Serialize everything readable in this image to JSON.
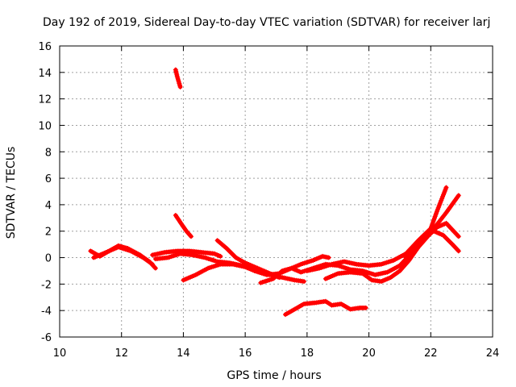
{
  "chart_data": {
    "type": "scatter",
    "title": "Day 192 of 2019, Sidereal Day-to-day VTEC variation (SDTVAR) for receiver larj",
    "xlabel": "GPS time / hours",
    "ylabel": "SDTVAR / TECUs",
    "xlim": [
      10,
      24
    ],
    "ylim": [
      -6,
      16
    ],
    "xticks": [
      10,
      12,
      14,
      16,
      18,
      20,
      22,
      24
    ],
    "yticks": [
      -6,
      -4,
      -2,
      0,
      2,
      4,
      6,
      8,
      10,
      12,
      14,
      16
    ],
    "grid": true,
    "marker": "plus",
    "color": "#ff0000",
    "series": [
      {
        "name": "track-1",
        "points": [
          [
            11.0,
            0.5
          ],
          [
            11.3,
            0.1
          ],
          [
            11.6,
            0.5
          ],
          [
            11.9,
            0.9
          ],
          [
            12.2,
            0.7
          ],
          [
            12.6,
            0.2
          ],
          [
            12.9,
            -0.3
          ],
          [
            13.1,
            -0.8
          ]
        ]
      },
      {
        "name": "track-2",
        "points": [
          [
            11.1,
            0.0
          ],
          [
            11.5,
            0.4
          ],
          [
            11.9,
            0.8
          ],
          [
            12.3,
            0.5
          ],
          [
            12.7,
            0.0
          ],
          [
            13.0,
            -0.5
          ]
        ]
      },
      {
        "name": "track-3",
        "points": [
          [
            13.0,
            0.2
          ],
          [
            13.4,
            0.4
          ],
          [
            13.8,
            0.5
          ],
          [
            14.2,
            0.5
          ],
          [
            14.6,
            0.4
          ],
          [
            15.0,
            0.3
          ],
          [
            15.2,
            0.1
          ]
        ]
      },
      {
        "name": "track-4",
        "points": [
          [
            13.1,
            -0.1
          ],
          [
            13.5,
            0.0
          ],
          [
            13.9,
            0.3
          ],
          [
            14.3,
            0.2
          ],
          [
            14.7,
            0.0
          ],
          [
            15.1,
            -0.3
          ],
          [
            15.5,
            -0.4
          ],
          [
            15.9,
            -0.6
          ],
          [
            16.3,
            -1.0
          ],
          [
            16.7,
            -1.3
          ],
          [
            17.1,
            -1.2
          ],
          [
            17.4,
            -0.9
          ],
          [
            17.8,
            -0.5
          ],
          [
            18.2,
            -0.2
          ],
          [
            18.5,
            0.1
          ],
          [
            18.7,
            0.0
          ]
        ]
      },
      {
        "name": "track-5",
        "points": [
          [
            14.0,
            -1.7
          ],
          [
            14.4,
            -1.3
          ],
          [
            14.8,
            -0.8
          ],
          [
            15.2,
            -0.5
          ],
          [
            15.6,
            -0.5
          ],
          [
            16.0,
            -0.7
          ],
          [
            16.4,
            -1.0
          ],
          [
            16.8,
            -1.3
          ],
          [
            17.2,
            -1.5
          ],
          [
            17.6,
            -1.7
          ],
          [
            17.9,
            -1.8
          ]
        ]
      },
      {
        "name": "track-6",
        "points": [
          [
            15.1,
            1.3
          ],
          [
            15.4,
            0.7
          ],
          [
            15.7,
            0.0
          ],
          [
            16.0,
            -0.4
          ],
          [
            16.4,
            -0.8
          ],
          [
            16.8,
            -1.2
          ],
          [
            17.1,
            -1.5
          ]
        ]
      },
      {
        "name": "track-7",
        "points": [
          [
            13.75,
            3.2
          ],
          [
            13.95,
            2.5
          ],
          [
            14.1,
            2.0
          ],
          [
            14.25,
            1.6
          ]
        ]
      },
      {
        "name": "track-8",
        "points": [
          [
            13.75,
            14.2
          ],
          [
            13.8,
            13.7
          ],
          [
            13.85,
            13.3
          ],
          [
            13.9,
            12.9
          ]
        ]
      },
      {
        "name": "track-9",
        "points": [
          [
            16.5,
            -1.9
          ],
          [
            16.9,
            -1.6
          ],
          [
            17.2,
            -1.0
          ],
          [
            17.5,
            -0.8
          ],
          [
            17.8,
            -1.1
          ],
          [
            18.2,
            -0.8
          ],
          [
            18.6,
            -0.5
          ],
          [
            19.0,
            -0.6
          ],
          [
            19.4,
            -0.9
          ],
          [
            19.8,
            -1.0
          ],
          [
            20.2,
            -1.3
          ],
          [
            20.6,
            -1.1
          ],
          [
            21.0,
            -0.6
          ],
          [
            21.4,
            0.4
          ],
          [
            21.8,
            1.5
          ],
          [
            22.2,
            2.5
          ],
          [
            22.5,
            3.4
          ],
          [
            22.9,
            4.7
          ]
        ]
      },
      {
        "name": "track-10",
        "points": [
          [
            18.6,
            -1.6
          ],
          [
            19.0,
            -1.2
          ],
          [
            19.4,
            -1.1
          ],
          [
            19.8,
            -1.2
          ],
          [
            20.1,
            -1.7
          ],
          [
            20.4,
            -1.8
          ],
          [
            20.7,
            -1.5
          ],
          [
            21.0,
            -1.0
          ],
          [
            21.3,
            -0.2
          ],
          [
            21.6,
            0.8
          ],
          [
            21.9,
            1.6
          ],
          [
            22.2,
            2.3
          ],
          [
            22.5,
            2.6
          ],
          [
            22.9,
            1.6
          ]
        ]
      },
      {
        "name": "track-11",
        "points": [
          [
            18.0,
            -1.0
          ],
          [
            18.4,
            -0.8
          ],
          [
            18.8,
            -0.5
          ],
          [
            19.2,
            -0.3
          ],
          [
            19.6,
            -0.5
          ],
          [
            20.0,
            -0.6
          ],
          [
            20.4,
            -0.5
          ],
          [
            20.8,
            -0.2
          ],
          [
            21.2,
            0.3
          ],
          [
            21.6,
            1.3
          ],
          [
            22.0,
            2.2
          ],
          [
            22.2,
            3.5
          ],
          [
            22.5,
            5.3
          ]
        ]
      },
      {
        "name": "track-12",
        "points": [
          [
            21.2,
            0.0
          ],
          [
            21.5,
            0.8
          ],
          [
            21.8,
            1.6
          ],
          [
            22.1,
            2.0
          ],
          [
            22.4,
            1.7
          ],
          [
            22.7,
            1.0
          ],
          [
            22.9,
            0.5
          ]
        ]
      },
      {
        "name": "track-13",
        "points": [
          [
            17.3,
            -4.3
          ],
          [
            17.6,
            -3.9
          ],
          [
            17.9,
            -3.5
          ],
          [
            18.3,
            -3.4
          ],
          [
            18.6,
            -3.3
          ],
          [
            18.8,
            -3.6
          ],
          [
            19.1,
            -3.5
          ],
          [
            19.4,
            -3.9
          ],
          [
            19.7,
            -3.8
          ],
          [
            19.9,
            -3.8
          ]
        ]
      }
    ]
  }
}
